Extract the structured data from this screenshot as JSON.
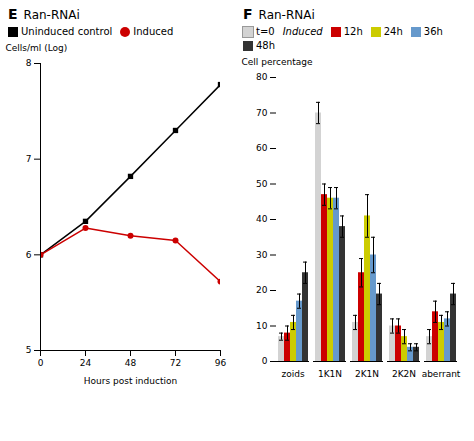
{
  "chart_data": [
    {
      "type": "line",
      "title": "Ran-RNAi",
      "annotations": [
        "E"
      ],
      "xlabel": "Hours post induction",
      "ylabel": "Cells/ml (Log)",
      "x": [
        0,
        24,
        48,
        72,
        96
      ],
      "series": [
        {
          "name": "Uninduced control",
          "color": "#000000",
          "marker": "square",
          "values": [
            6.0,
            6.35,
            6.82,
            7.3,
            7.78
          ]
        },
        {
          "name": "Induced",
          "color": "#cc0000",
          "marker": "circle",
          "values": [
            6.0,
            6.28,
            6.2,
            6.15,
            5.72
          ]
        }
      ],
      "xlim": [
        0,
        96
      ],
      "xticks": [
        0,
        24,
        48,
        72,
        96
      ],
      "ylim": [
        5,
        8
      ],
      "yticks": [
        5,
        6,
        7,
        8
      ]
    },
    {
      "type": "bar",
      "title": "Ran-RNAi",
      "annotations": [
        "F",
        "Induced"
      ],
      "ylabel": "Cell percentage",
      "categories": [
        "zoids",
        "1K1N",
        "2K1N",
        "2K2N",
        "aberrant"
      ],
      "series": [
        {
          "name": "t=0",
          "color": "#d3d3d3",
          "values": [
            7,
            70,
            11,
            10,
            7
          ],
          "errors": [
            1,
            3,
            2,
            2,
            2
          ]
        },
        {
          "name": "12h",
          "color": "#cc0000",
          "values": [
            8,
            47,
            25,
            10,
            14
          ],
          "errors": [
            2,
            3,
            4,
            2,
            3
          ]
        },
        {
          "name": "24h",
          "color": "#cccc00",
          "values": [
            11,
            46,
            41,
            7,
            11
          ],
          "errors": [
            2,
            3,
            6,
            2,
            2
          ]
        },
        {
          "name": "36h",
          "color": "#6699cc",
          "values": [
            17,
            46,
            30,
            4,
            12
          ],
          "errors": [
            2,
            3,
            5,
            1,
            2
          ]
        },
        {
          "name": "48h",
          "color": "#333333",
          "values": [
            25,
            38,
            19,
            4,
            19
          ],
          "errors": [
            3,
            3,
            3,
            1,
            3
          ]
        }
      ],
      "ylim": [
        0,
        80
      ],
      "yticks": [
        0,
        10,
        20,
        30,
        40,
        50,
        60,
        70,
        80
      ]
    }
  ]
}
